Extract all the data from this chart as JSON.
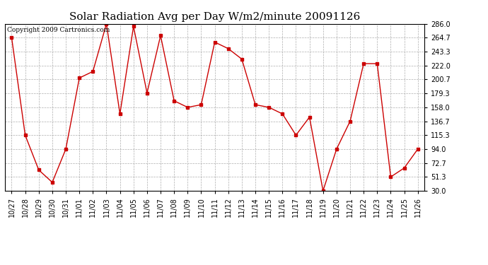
{
  "title": "Solar Radiation Avg per Day W/m2/minute 20091126",
  "copyright": "Copyright 2009 Cartronics.com",
  "labels": [
    "10/27",
    "10/28",
    "10/29",
    "10/30",
    "10/31",
    "11/01",
    "11/02",
    "11/03",
    "11/04",
    "11/05",
    "11/06",
    "11/07",
    "11/08",
    "11/09",
    "11/10",
    "11/11",
    "11/12",
    "11/13",
    "11/14",
    "11/15",
    "11/16",
    "11/17",
    "11/18",
    "11/19",
    "11/20",
    "11/21",
    "11/22",
    "11/23",
    "11/24",
    "11/25",
    "11/26"
  ],
  "values": [
    264.7,
    115.3,
    62.0,
    43.0,
    94.0,
    203.0,
    213.0,
    286.0,
    148.0,
    282.0,
    180.0,
    268.0,
    168.0,
    158.0,
    162.0,
    258.0,
    248.0,
    232.0,
    162.0,
    158.0,
    148.0,
    115.3,
    143.0,
    30.0,
    94.0,
    136.7,
    225.0,
    225.0,
    51.3,
    65.0,
    94.0
  ],
  "ymin": 30.0,
  "ymax": 286.0,
  "yticks": [
    30.0,
    51.3,
    72.7,
    94.0,
    115.3,
    136.7,
    158.0,
    179.3,
    200.7,
    222.0,
    243.3,
    264.7,
    286.0
  ],
  "line_color": "#cc0000",
  "marker_color": "#cc0000",
  "bg_color": "#ffffff",
  "grid_color": "#999999",
  "title_fontsize": 11,
  "copyright_fontsize": 6.5,
  "tick_fontsize": 7,
  "fig_width": 6.9,
  "fig_height": 3.75,
  "fig_dpi": 100
}
